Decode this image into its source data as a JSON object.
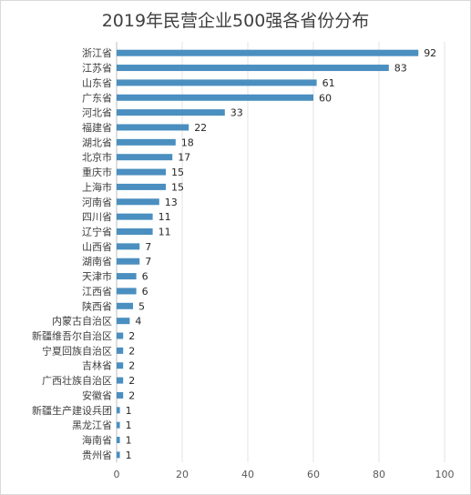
{
  "chart_data": {
    "type": "bar",
    "orientation": "horizontal",
    "title": "2019年民营企业500强各省份分布",
    "categories": [
      "浙江省",
      "江苏省",
      "山东省",
      "广东省",
      "河北省",
      "福建省",
      "湖北省",
      "北京市",
      "重庆市",
      "上海市",
      "河南省",
      "四川省",
      "辽宁省",
      "山西省",
      "湖南省",
      "天津市",
      "江西省",
      "陕西省",
      "内蒙古自治区",
      "新疆维吾尔自治区",
      "宁夏回族自治区",
      "吉林省",
      "广西壮族自治区",
      "安徽省",
      "新疆生产建设兵团",
      "黑龙江省",
      "海南省",
      "贵州省"
    ],
    "values": [
      92,
      83,
      61,
      60,
      33,
      22,
      18,
      17,
      15,
      15,
      13,
      11,
      11,
      7,
      7,
      6,
      6,
      5,
      4,
      2,
      2,
      2,
      2,
      2,
      1,
      1,
      1,
      1
    ],
    "xlim": [
      0,
      100
    ],
    "xticks": [
      0,
      20,
      40,
      60,
      80,
      100
    ],
    "grid": true,
    "bar_color": "#4a8fc0"
  }
}
